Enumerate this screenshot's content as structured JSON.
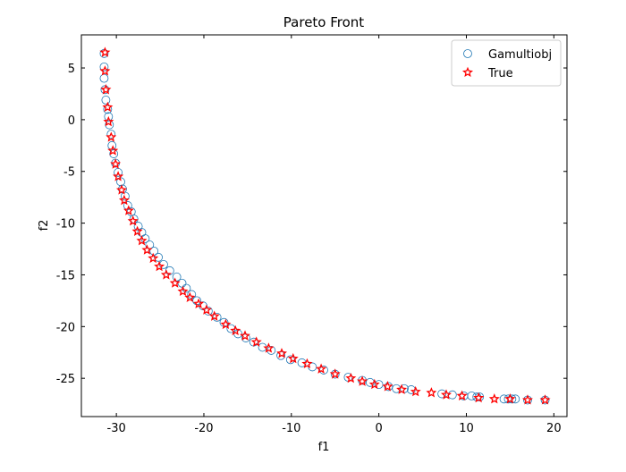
{
  "chart_data": {
    "type": "scatter",
    "title": "Pareto Front",
    "xlabel": "f1",
    "ylabel": "f2",
    "xlim": [
      -34,
      21.5
    ],
    "ylim": [
      -28.7,
      8.2
    ],
    "xticks": [
      -30,
      -20,
      -10,
      0,
      10,
      20
    ],
    "yticks": [
      5,
      0,
      -5,
      -10,
      -15,
      -20,
      -25
    ],
    "xtick_labels": [
      "-30",
      "-20",
      "-10",
      "0",
      "10",
      "20"
    ],
    "ytick_labels": [
      "5",
      "0",
      "-5",
      "-10",
      "-15",
      "-20",
      "-25"
    ],
    "grid": false,
    "legend_position": "top-right",
    "series": [
      {
        "name": "Gamultiobj",
        "marker": "circle-open",
        "color": "#1f77b4",
        "points": [
          [
            -31.4,
            6.4
          ],
          [
            -31.4,
            5.1
          ],
          [
            -31.4,
            4.0
          ],
          [
            -31.3,
            2.9
          ],
          [
            -31.2,
            1.9
          ],
          [
            -31.0,
            1.0
          ],
          [
            -30.9,
            0.3
          ],
          [
            -30.8,
            -0.5
          ],
          [
            -30.6,
            -1.4
          ],
          [
            -30.5,
            -2.5
          ],
          [
            -30.3,
            -3.3
          ],
          [
            -30.1,
            -4.2
          ],
          [
            -29.8,
            -5.1
          ],
          [
            -29.5,
            -6.0
          ],
          [
            -29.3,
            -6.7
          ],
          [
            -29.0,
            -7.4
          ],
          [
            -28.7,
            -8.3
          ],
          [
            -28.3,
            -8.9
          ],
          [
            -28.0,
            -9.6
          ],
          [
            -27.5,
            -10.3
          ],
          [
            -27.1,
            -10.9
          ],
          [
            -26.7,
            -11.5
          ],
          [
            -26.2,
            -12.1
          ],
          [
            -25.7,
            -12.7
          ],
          [
            -25.2,
            -13.3
          ],
          [
            -24.6,
            -14.0
          ],
          [
            -23.9,
            -14.6
          ],
          [
            -23.1,
            -15.2
          ],
          [
            -22.5,
            -15.8
          ],
          [
            -22.0,
            -16.3
          ],
          [
            -21.4,
            -16.9
          ],
          [
            -20.8,
            -17.5
          ],
          [
            -20.1,
            -18.0
          ],
          [
            -19.5,
            -18.5
          ],
          [
            -18.5,
            -19.1
          ],
          [
            -17.7,
            -19.6
          ],
          [
            -16.9,
            -20.2
          ],
          [
            -16.1,
            -20.7
          ],
          [
            -15.2,
            -21.1
          ],
          [
            -14.3,
            -21.5
          ],
          [
            -13.3,
            -22.0
          ],
          [
            -12.3,
            -22.3
          ],
          [
            -11.2,
            -22.8
          ],
          [
            -10.1,
            -23.2
          ],
          [
            -8.8,
            -23.5
          ],
          [
            -7.6,
            -23.9
          ],
          [
            -6.3,
            -24.2
          ],
          [
            -5.0,
            -24.6
          ],
          [
            -3.5,
            -24.9
          ],
          [
            -1.9,
            -25.2
          ],
          [
            -1.0,
            -25.4
          ],
          [
            0.0,
            -25.6
          ],
          [
            1.1,
            -25.8
          ],
          [
            2.0,
            -26.0
          ],
          [
            2.9,
            -26.0
          ],
          [
            3.7,
            -26.1
          ],
          [
            7.2,
            -26.5
          ],
          [
            8.4,
            -26.6
          ],
          [
            9.7,
            -26.7
          ],
          [
            10.6,
            -26.7
          ],
          [
            11.2,
            -26.8
          ],
          [
            11.5,
            -26.8
          ],
          [
            14.3,
            -27.0
          ],
          [
            14.8,
            -27.0
          ],
          [
            15.2,
            -27.0
          ],
          [
            15.6,
            -27.0
          ],
          [
            17.0,
            -27.1
          ],
          [
            19.0,
            -27.1
          ]
        ]
      },
      {
        "name": "True",
        "marker": "star-open",
        "color": "#ff0000",
        "points": [
          [
            -31.3,
            6.5
          ],
          [
            -31.3,
            4.7
          ],
          [
            -31.2,
            2.9
          ],
          [
            -31.0,
            1.2
          ],
          [
            -30.9,
            -0.2
          ],
          [
            -30.6,
            -1.7
          ],
          [
            -30.4,
            -3.0
          ],
          [
            -30.1,
            -4.3
          ],
          [
            -29.8,
            -5.5
          ],
          [
            -29.4,
            -6.8
          ],
          [
            -29.1,
            -7.8
          ],
          [
            -28.6,
            -8.8
          ],
          [
            -28.1,
            -9.8
          ],
          [
            -27.6,
            -10.8
          ],
          [
            -27.1,
            -11.7
          ],
          [
            -26.5,
            -12.6
          ],
          [
            -25.8,
            -13.4
          ],
          [
            -25.1,
            -14.2
          ],
          [
            -24.3,
            -15.0
          ],
          [
            -23.3,
            -15.8
          ],
          [
            -22.4,
            -16.6
          ],
          [
            -21.6,
            -17.2
          ],
          [
            -20.6,
            -17.8
          ],
          [
            -19.7,
            -18.4
          ],
          [
            -18.8,
            -19.0
          ],
          [
            -17.5,
            -19.8
          ],
          [
            -16.4,
            -20.4
          ],
          [
            -15.3,
            -20.9
          ],
          [
            -14.0,
            -21.5
          ],
          [
            -12.6,
            -22.1
          ],
          [
            -11.1,
            -22.6
          ],
          [
            -9.8,
            -23.1
          ],
          [
            -8.2,
            -23.6
          ],
          [
            -6.6,
            -24.1
          ],
          [
            -5.0,
            -24.6
          ],
          [
            -3.2,
            -25.0
          ],
          [
            -1.9,
            -25.3
          ],
          [
            -0.5,
            -25.6
          ],
          [
            1.0,
            -25.8
          ],
          [
            2.6,
            -26.1
          ],
          [
            4.2,
            -26.3
          ],
          [
            6.0,
            -26.4
          ],
          [
            7.7,
            -26.6
          ],
          [
            9.5,
            -26.7
          ],
          [
            11.4,
            -26.9
          ],
          [
            13.2,
            -27.0
          ],
          [
            15.0,
            -27.0
          ],
          [
            17.0,
            -27.1
          ],
          [
            19.0,
            -27.1
          ]
        ]
      }
    ]
  }
}
